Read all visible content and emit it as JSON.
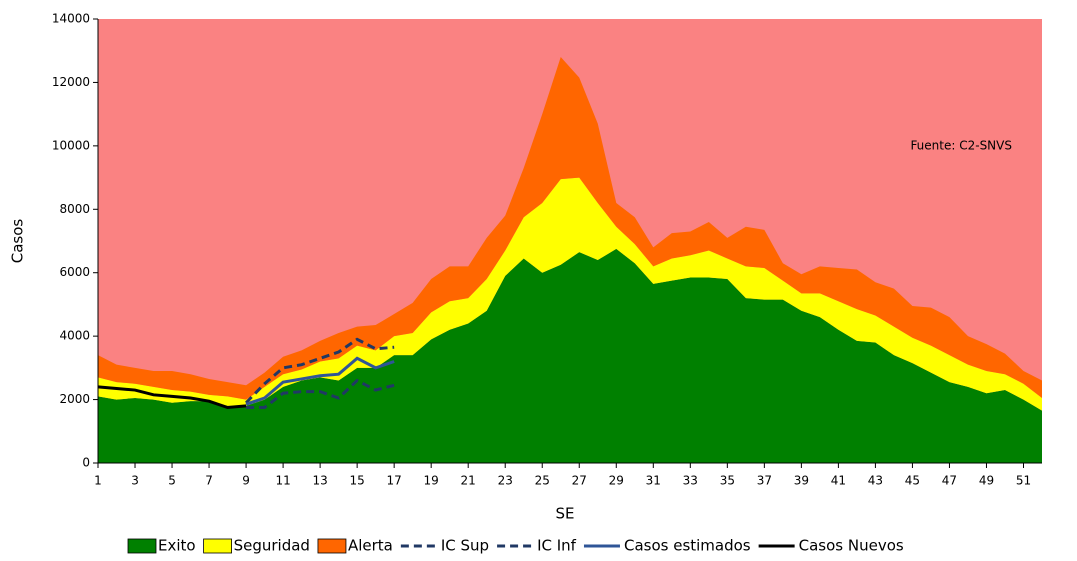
{
  "chart_data": {
    "type": "stacked_area_with_lines",
    "x_label": "SE",
    "y_label": "Casos",
    "annotation": "Fuente: C2-SNVS",
    "background_color": "#fa8282",
    "x": [
      1,
      2,
      3,
      4,
      5,
      6,
      7,
      8,
      9,
      10,
      11,
      12,
      13,
      14,
      15,
      16,
      17,
      18,
      19,
      20,
      21,
      22,
      23,
      24,
      25,
      26,
      27,
      28,
      29,
      30,
      31,
      32,
      33,
      34,
      35,
      36,
      37,
      38,
      39,
      40,
      41,
      42,
      43,
      44,
      45,
      46,
      47,
      48,
      49,
      50,
      51,
      52
    ],
    "xlim": [
      1,
      52
    ],
    "xticks": [
      1,
      3,
      5,
      7,
      9,
      11,
      13,
      15,
      17,
      19,
      21,
      23,
      25,
      27,
      29,
      31,
      33,
      35,
      37,
      39,
      41,
      43,
      45,
      47,
      49,
      51
    ],
    "ylim": [
      0,
      14000
    ],
    "yticks": [
      0,
      2000,
      4000,
      6000,
      8000,
      10000,
      12000,
      14000
    ],
    "areas": [
      {
        "name": "Exito",
        "color": "#008000",
        "values": [
          2100,
          2000,
          2050,
          2000,
          1900,
          1950,
          1950,
          1800,
          1800,
          2000,
          2400,
          2600,
          2700,
          2600,
          3000,
          3000,
          3400,
          3400,
          3900,
          4200,
          4400,
          4800,
          5900,
          6450,
          6000,
          6250,
          6650,
          6400,
          6750,
          6300,
          5650,
          5750,
          5850,
          5850,
          5800,
          5200,
          5150,
          5150,
          4800,
          4600,
          4200,
          3850,
          3800,
          3400,
          3150,
          2850,
          2550,
          2400,
          2200,
          2300,
          2000,
          1650
        ]
      },
      {
        "name": "Seguridad",
        "color": "#ffff00",
        "values": [
          600,
          550,
          450,
          400,
          400,
          300,
          200,
          300,
          200,
          400,
          400,
          350,
          500,
          700,
          700,
          550,
          600,
          700,
          850,
          900,
          800,
          1000,
          800,
          1300,
          2200,
          2700,
          2350,
          1800,
          700,
          600,
          550,
          700,
          700,
          850,
          650,
          1000,
          1000,
          600,
          550,
          750,
          900,
          1000,
          850,
          900,
          800,
          850,
          850,
          700,
          700,
          500,
          500,
          400
        ]
      },
      {
        "name": "Alerta",
        "color": "#ff6600",
        "values": [
          700,
          550,
          500,
          500,
          600,
          550,
          500,
          450,
          450,
          450,
          550,
          600,
          650,
          800,
          600,
          800,
          700,
          950,
          1050,
          1100,
          1000,
          1300,
          1100,
          1550,
          2800,
          3850,
          3150,
          2500,
          750,
          850,
          600,
          800,
          750,
          900,
          650,
          1250,
          1200,
          550,
          600,
          850,
          1050,
          1250,
          1050,
          1200,
          1000,
          1200,
          1200,
          900,
          850,
          650,
          400,
          550
        ]
      }
    ],
    "series": [
      {
        "name": "IC Sup",
        "color": "#203864",
        "dashed": true,
        "values": [
          null,
          null,
          null,
          null,
          null,
          null,
          null,
          null,
          1900,
          2500,
          3000,
          3100,
          3300,
          3500,
          3900,
          3600,
          3650,
          null,
          null,
          null,
          null,
          null,
          null,
          null,
          null,
          null,
          null,
          null,
          null,
          null,
          null,
          null,
          null,
          null,
          null,
          null,
          null,
          null,
          null,
          null,
          null,
          null,
          null,
          null,
          null,
          null,
          null,
          null,
          null,
          null,
          null,
          null
        ]
      },
      {
        "name": "IC Inf",
        "color": "#203864",
        "dashed": true,
        "values": [
          null,
          null,
          null,
          null,
          null,
          null,
          null,
          null,
          1750,
          1750,
          2200,
          2250,
          2250,
          2050,
          2600,
          2300,
          2450,
          null,
          null,
          null,
          null,
          null,
          null,
          null,
          null,
          null,
          null,
          null,
          null,
          null,
          null,
          null,
          null,
          null,
          null,
          null,
          null,
          null,
          null,
          null,
          null,
          null,
          null,
          null,
          null,
          null,
          null,
          null,
          null,
          null,
          null,
          null
        ]
      },
      {
        "name": "Casos estimados",
        "color": "#2f5597",
        "dashed": false,
        "values": [
          null,
          null,
          null,
          null,
          null,
          null,
          null,
          null,
          1850,
          2050,
          2550,
          2650,
          2750,
          2800,
          3300,
          3000,
          3200,
          null,
          null,
          null,
          null,
          null,
          null,
          null,
          null,
          null,
          null,
          null,
          null,
          null,
          null,
          null,
          null,
          null,
          null,
          null,
          null,
          null,
          null,
          null,
          null,
          null,
          null,
          null,
          null,
          null,
          null,
          null,
          null,
          null,
          null,
          null
        ]
      },
      {
        "name": "Casos Nuevos",
        "color": "#000000",
        "dashed": false,
        "values": [
          2400,
          2350,
          2300,
          2150,
          2100,
          2050,
          1950,
          1750,
          1800,
          null,
          null,
          null,
          null,
          null,
          null,
          null,
          null,
          null,
          null,
          null,
          null,
          null,
          null,
          null,
          null,
          null,
          null,
          null,
          null,
          null,
          null,
          null,
          null,
          null,
          null,
          null,
          null,
          null,
          null,
          null,
          null,
          null,
          null,
          null,
          null,
          null,
          null,
          null,
          null,
          null,
          null,
          null
        ]
      }
    ]
  }
}
